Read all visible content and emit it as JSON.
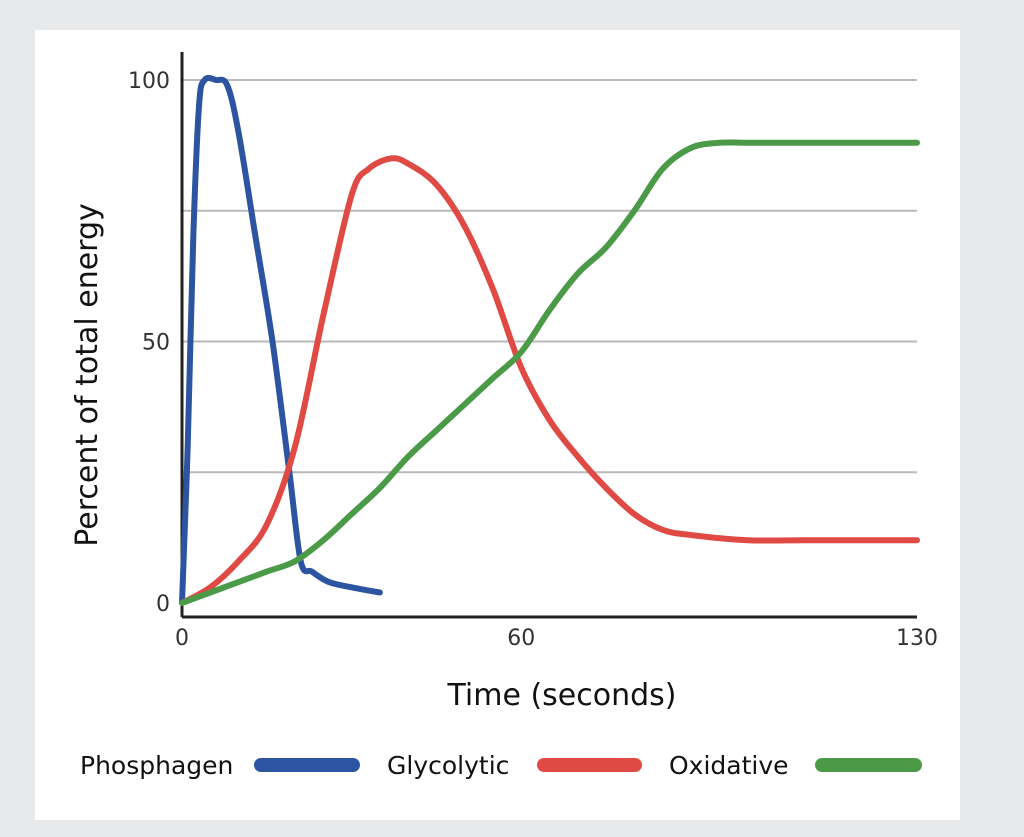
{
  "chart_data": {
    "type": "line",
    "title": "",
    "xlabel": "Time (seconds)",
    "ylabel": "Percent of total energy",
    "xlim": [
      0,
      130
    ],
    "ylim": [
      0,
      100
    ],
    "x_ticks": [
      {
        "value": 0,
        "label": "0"
      },
      {
        "value": 60,
        "label": "60"
      },
      {
        "value": 130,
        "label": "130"
      }
    ],
    "y_ticks": [
      {
        "value": 0,
        "label": "0"
      },
      {
        "value": 50,
        "label": "50"
      },
      {
        "value": 100,
        "label": "100"
      }
    ],
    "gridlines_y": [
      25,
      50,
      75,
      100
    ],
    "grid": true,
    "legend_position": "bottom",
    "series": [
      {
        "name": "Phosphagen",
        "color": "#2c54a0",
        "x": [
          0,
          1,
          2,
          3,
          4,
          6,
          8,
          10,
          13,
          16,
          19,
          21,
          23,
          26,
          30,
          35
        ],
        "y": [
          0,
          30,
          70,
          95,
          100,
          100,
          99,
          90,
          70,
          50,
          25,
          8,
          6,
          4,
          3,
          2
        ]
      },
      {
        "name": "Glycolytic",
        "color": "#e04a45",
        "x": [
          0,
          5,
          10,
          15,
          20,
          25,
          30,
          33,
          37,
          40,
          45,
          50,
          55,
          60,
          65,
          70,
          75,
          80,
          85,
          90,
          100,
          110,
          120,
          130
        ],
        "y": [
          0,
          3,
          8,
          15,
          30,
          55,
          78,
          83,
          85,
          84,
          80,
          72,
          60,
          45,
          35,
          28,
          22,
          17,
          14,
          13,
          12,
          12,
          12,
          12
        ]
      },
      {
        "name": "Oxidative",
        "color": "#4a9a48",
        "x": [
          0,
          5,
          10,
          15,
          20,
          25,
          30,
          35,
          40,
          45,
          50,
          55,
          60,
          65,
          70,
          75,
          80,
          85,
          90,
          95,
          100,
          110,
          120,
          130
        ],
        "y": [
          0,
          2,
          4,
          6,
          8,
          12,
          17,
          22,
          28,
          33,
          38,
          43,
          48,
          56,
          63,
          68,
          75,
          83,
          87,
          88,
          88,
          88,
          88,
          88
        ]
      }
    ]
  }
}
